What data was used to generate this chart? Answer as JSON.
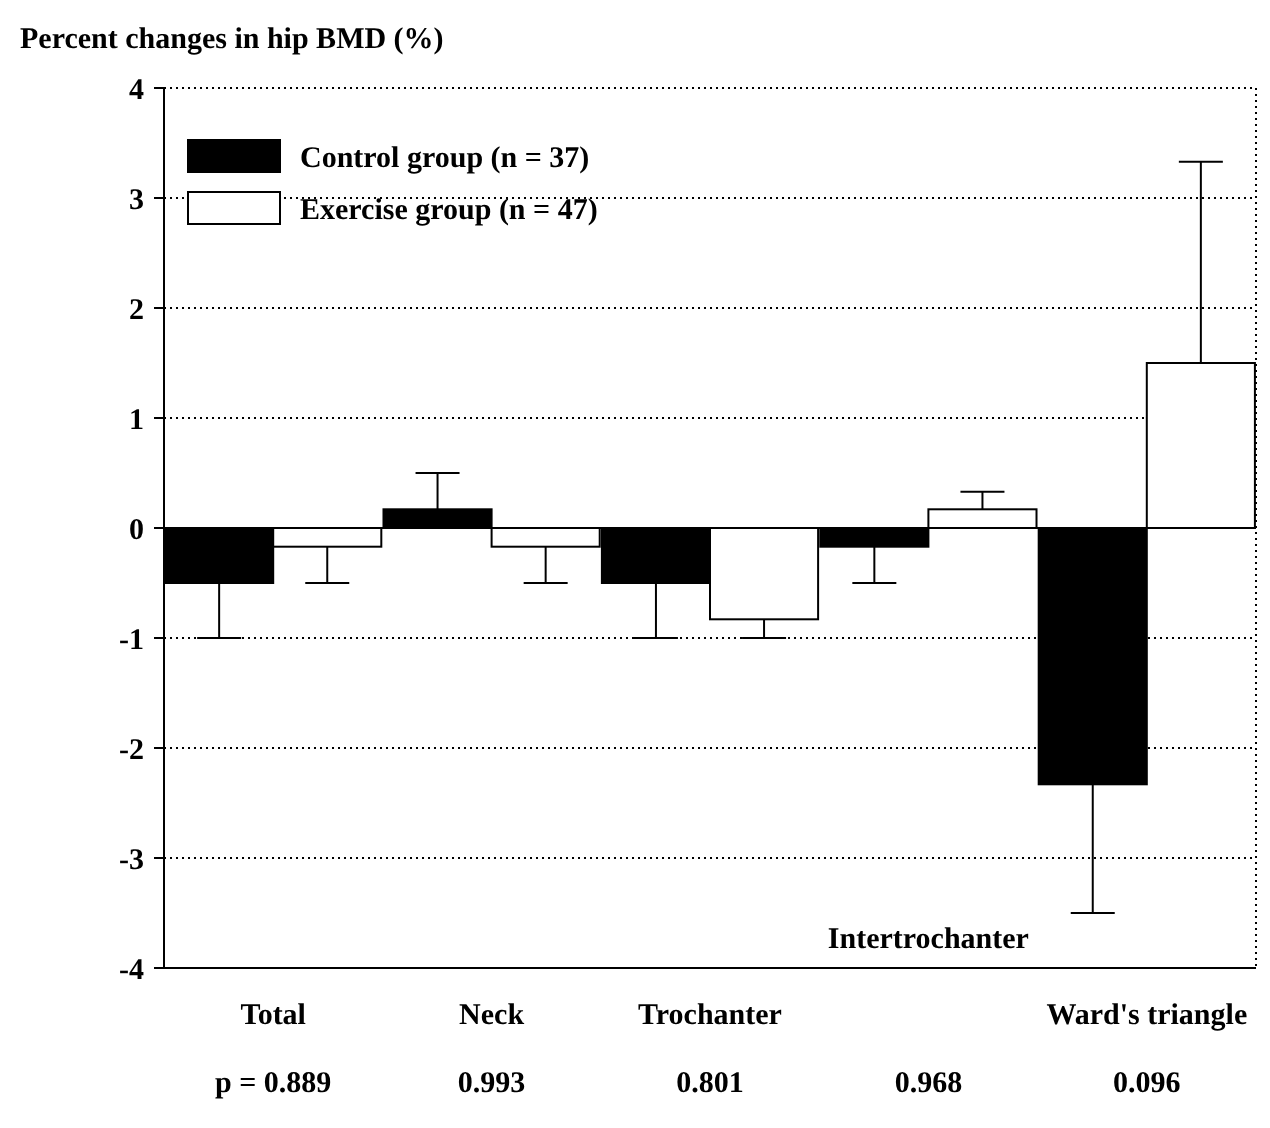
{
  "chart_data": {
    "type": "bar",
    "title": "Percent changes in hip BMD (%)",
    "categories": [
      "Total",
      "Neck",
      "Trochanter",
      "Intertrochanter",
      "Ward's triangle"
    ],
    "series": [
      {
        "name": "Control group (n = 37)",
        "color": "#000000",
        "values": [
          -0.5,
          0.17,
          -0.5,
          -0.17,
          -2.33
        ],
        "errors": [
          [
            -1.0,
            -0.5
          ],
          [
            0.17,
            0.5
          ],
          [
            -1.0,
            -0.5
          ],
          [
            -0.5,
            -0.17
          ],
          [
            -3.5,
            -2.33
          ]
        ]
      },
      {
        "name": "Exercise group (n = 47)",
        "color": "#ffffff",
        "values": [
          -0.17,
          -0.17,
          -0.83,
          0.17,
          1.5
        ],
        "errors": [
          [
            -0.5,
            -0.17
          ],
          [
            -0.5,
            -0.17
          ],
          [
            -1.0,
            -0.83
          ],
          [
            0.17,
            0.33
          ],
          [
            1.5,
            3.33
          ]
        ]
      }
    ],
    "ylim": [
      -4,
      4
    ],
    "yticks": [
      -4,
      -3,
      -2,
      -1,
      0,
      1,
      2,
      3,
      4
    ],
    "grid": "y",
    "legend": "top left",
    "annotations": [
      "p = 0.889",
      "0.993",
      "0.801",
      "0.968",
      "0.096"
    ]
  }
}
